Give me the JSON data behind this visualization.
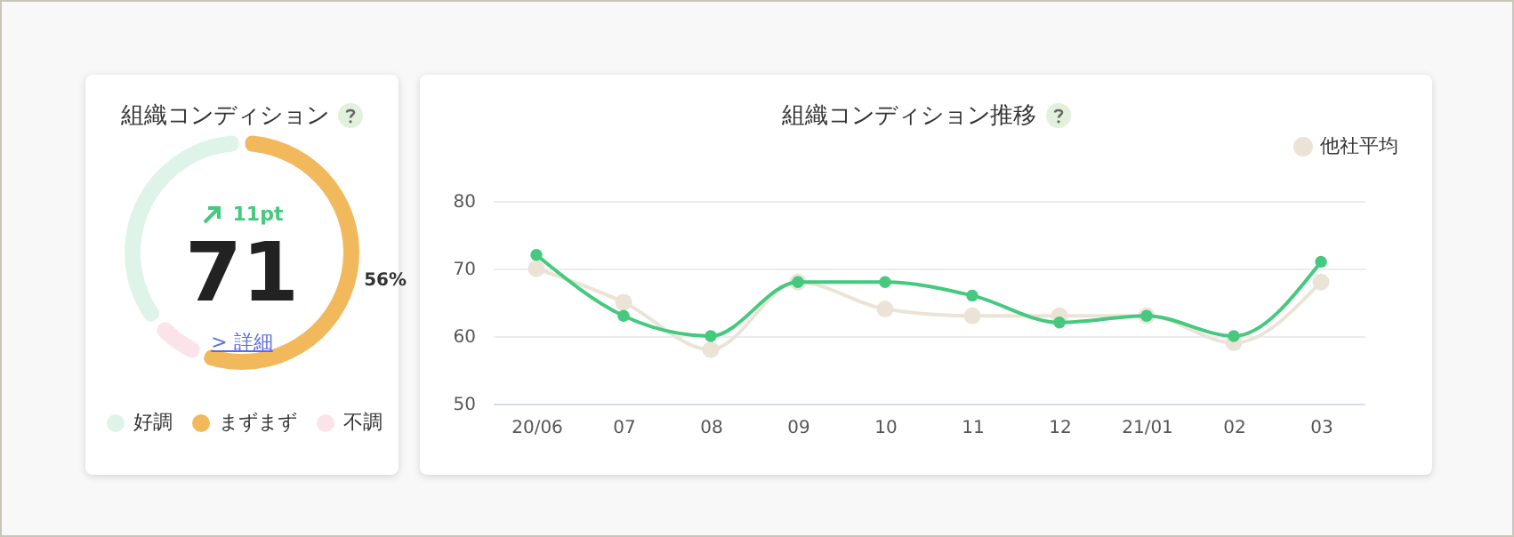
{
  "chart_data": [
    {
      "type": "donut",
      "title": "組織コンディション",
      "categories": [
        "好調",
        "まずまず",
        "不調"
      ],
      "values": [
        36,
        56,
        8
      ],
      "colors": [
        "#dff4e8",
        "#f2b95c",
        "#fbe3ea"
      ],
      "value_labels": [
        null,
        "56%",
        null
      ],
      "legend": "bottom",
      "annotations": [
        "11pt",
        "71",
        "> 詳細"
      ]
    },
    {
      "type": "line",
      "title": "組織コンディション推移",
      "categories": [
        "20/06",
        "07",
        "08",
        "09",
        "10",
        "11",
        "12",
        "21/01",
        "02",
        "03"
      ],
      "series": [
        {
          "name": "他社平均",
          "color": "#ebe4d6",
          "values": [
            70,
            65,
            58,
            68,
            64,
            63,
            63,
            63,
            59,
            68
          ]
        },
        {
          "color": "#45c97f",
          "values": [
            72,
            63,
            60,
            68,
            68,
            66,
            62,
            63,
            60,
            71
          ]
        }
      ],
      "ylim": [
        50,
        80
      ],
      "yticks": [
        50,
        60,
        70,
        80
      ],
      "grid": "y",
      "legend": "top right",
      "marker": "circle"
    }
  ]
}
